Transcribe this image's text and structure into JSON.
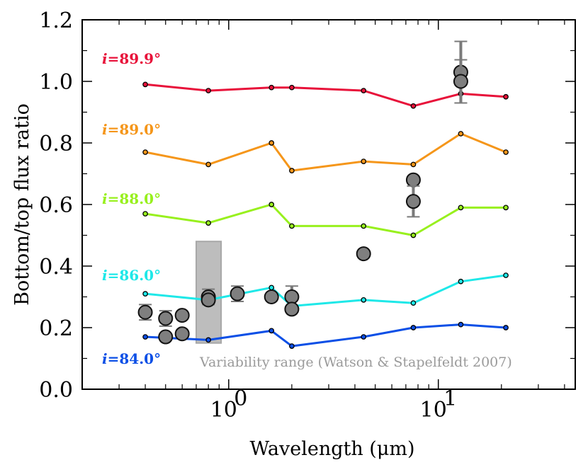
{
  "chart_data": {
    "type": "line",
    "title": "",
    "xlabel": "Wavelength (μm)",
    "ylabel": "Bottom/top flux ratio",
    "xscale": "log",
    "xlim": [
      0.2,
      45
    ],
    "ylim": [
      0.0,
      1.2
    ],
    "x_ticks": [
      {
        "value": 1,
        "label": "10",
        "exp": "0"
      },
      {
        "value": 10,
        "label": "10",
        "exp": "1"
      }
    ],
    "y_ticks": [
      {
        "value": 0.0,
        "label": "0.0"
      },
      {
        "value": 0.2,
        "label": "0.2"
      },
      {
        "value": 0.4,
        "label": "0.4"
      },
      {
        "value": 0.6,
        "label": "0.6"
      },
      {
        "value": 0.8,
        "label": "0.8"
      },
      {
        "value": 1.0,
        "label": "1.0"
      },
      {
        "value": 1.2,
        "label": "1.2"
      }
    ],
    "x": [
      0.4,
      0.8,
      1.6,
      2.0,
      4.4,
      7.6,
      12.8,
      21
    ],
    "series": [
      {
        "name": "89.9°",
        "prefix": "i=",
        "color": "#e8123a",
        "values": [
          0.99,
          0.97,
          0.98,
          0.98,
          0.97,
          0.92,
          0.96,
          0.95
        ]
      },
      {
        "name": "89.0°",
        "prefix": "i=",
        "color": "#f5961a",
        "values": [
          0.77,
          0.73,
          0.8,
          0.71,
          0.74,
          0.73,
          0.83,
          0.77
        ]
      },
      {
        "name": "88.0°",
        "prefix": "i=",
        "color": "#98f01e",
        "values": [
          0.57,
          0.54,
          0.6,
          0.53,
          0.53,
          0.5,
          0.59,
          0.59
        ]
      },
      {
        "name": "86.0°",
        "prefix": "i=",
        "color": "#1ee8e8",
        "values": [
          0.31,
          0.29,
          0.33,
          0.27,
          0.29,
          0.28,
          0.35,
          0.37
        ]
      },
      {
        "name": "84.0°",
        "prefix": "i=",
        "color": "#0b4fe6",
        "values": [
          0.17,
          0.16,
          0.19,
          0.14,
          0.17,
          0.2,
          0.21,
          0.2
        ]
      }
    ],
    "observations": [
      {
        "x": 0.4,
        "y": 0.25,
        "err": 0.025
      },
      {
        "x": 0.5,
        "y": 0.23,
        "err": 0.025
      },
      {
        "x": 0.5,
        "y": 0.17,
        "err": 0
      },
      {
        "x": 0.6,
        "y": 0.24,
        "err": 0
      },
      {
        "x": 0.6,
        "y": 0.18,
        "err": 0
      },
      {
        "x": 0.8,
        "y": 0.3,
        "err": 0.025
      },
      {
        "x": 0.8,
        "y": 0.29,
        "err": 0
      },
      {
        "x": 1.1,
        "y": 0.31,
        "err": 0.025
      },
      {
        "x": 1.6,
        "y": 0.3,
        "err": 0
      },
      {
        "x": 2.0,
        "y": 0.3,
        "err": 0.035
      },
      {
        "x": 2.0,
        "y": 0.26,
        "err": 0
      },
      {
        "x": 4.4,
        "y": 0.44,
        "err": 0
      },
      {
        "x": 7.6,
        "y": 0.68,
        "err": 0
      },
      {
        "x": 7.6,
        "y": 0.61,
        "err": 0.05
      },
      {
        "x": 12.8,
        "y": 1.03,
        "err": 0.1
      },
      {
        "x": 12.8,
        "y": 1.0,
        "err": 0.07
      }
    ],
    "variability_band": {
      "x0": 0.7,
      "x1": 0.92,
      "y0": 0.15,
      "y1": 0.48,
      "label": "Variability range (Watson & Stapelfeldt 2007)"
    }
  }
}
